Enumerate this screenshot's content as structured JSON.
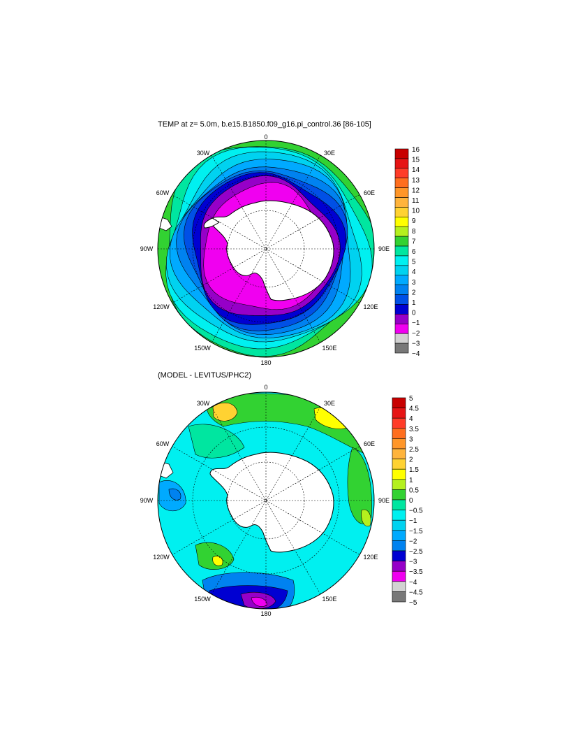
{
  "top_panel": {
    "title": "TEMP at z=   5.0m, b.e15.B1850.f09_g16.pi_control.36 [86-105]",
    "lon_labels": {
      "n": "0",
      "nne": "30E",
      "ene": "60E",
      "e": "90E",
      "ese": "120E",
      "sse": "150E",
      "s": "180",
      "ssw": "150W",
      "wsw": "120W",
      "w": "90W",
      "wnw": "60W",
      "nnw": "30W"
    },
    "colorbar_labels": [
      "16",
      "15",
      "14",
      "13",
      "12",
      "11",
      "10",
      "9",
      "8",
      "7",
      "6",
      "5",
      "4",
      "3",
      "2",
      "1",
      "0",
      "−1",
      "−2",
      "−3",
      "−4"
    ],
    "colorbar_colors": [
      "#c80000",
      "#e61414",
      "#ff3c28",
      "#ff6e1e",
      "#ff9628",
      "#ffb43c",
      "#ffd232",
      "#ffff00",
      "#b4f01e",
      "#32d232",
      "#00e6a0",
      "#00f0f0",
      "#00d2f0",
      "#00aaff",
      "#0082f0",
      "#0050e6",
      "#0000d2",
      "#9600c8",
      "#f000f0",
      "#d2d2d2",
      "#787878"
    ],
    "rings": [
      "#f000f0",
      "#9600c8",
      "#0000d2",
      "#0050e6",
      "#0082f0",
      "#00aaff",
      "#00d2f0",
      "#00f0f0",
      "#00e6a0"
    ]
  },
  "bottom_panel": {
    "title": "(MODEL - LEVITUS/PHC2)",
    "lon_labels": {
      "n": "0",
      "nne": "30E",
      "ene": "60E",
      "e": "90E",
      "ese": "120E",
      "sse": "150E",
      "s": "180",
      "ssw": "150W",
      "wsw": "120W",
      "w": "90W",
      "wnw": "60W",
      "nnw": "30W"
    },
    "colorbar_labels": [
      "5",
      "4.5",
      "4",
      "3.5",
      "3",
      "2.5",
      "2",
      "1.5",
      "1",
      "0.5",
      "0",
      "−0.5",
      "−1",
      "−1.5",
      "−2",
      "−2.5",
      "−3",
      "−3.5",
      "−4",
      "−4.5",
      "−5"
    ],
    "colorbar_colors": [
      "#c80000",
      "#e61414",
      "#ff3c28",
      "#ff6e1e",
      "#ff9628",
      "#ffb43c",
      "#ffd232",
      "#ffff00",
      "#b4f01e",
      "#32d232",
      "#00e6a0",
      "#00f0f0",
      "#00d2f0",
      "#00aaff",
      "#0082f0",
      "#0000d2",
      "#9600c8",
      "#f000f0",
      "#d2d2d2",
      "#787878"
    ],
    "base_color": "#00f0f0"
  }
}
